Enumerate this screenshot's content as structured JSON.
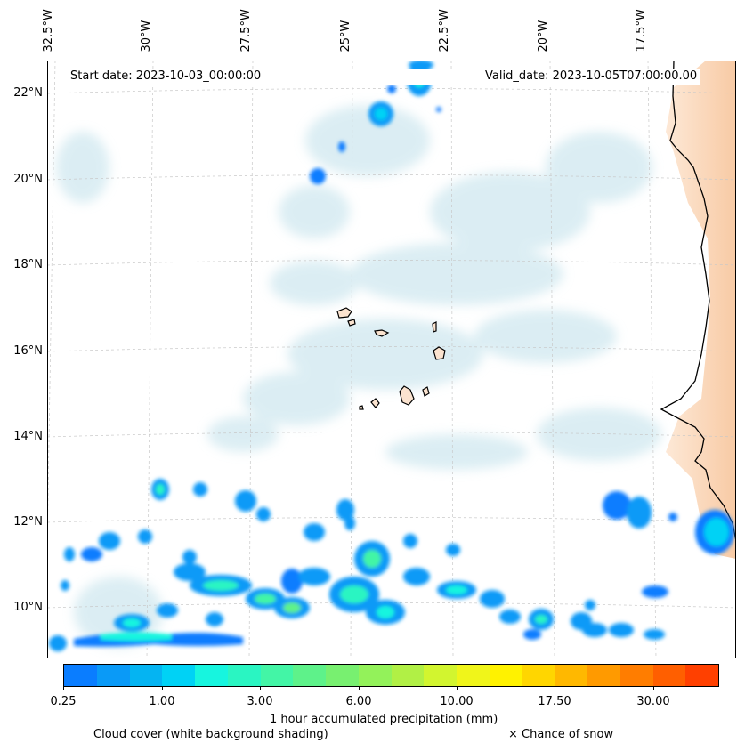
{
  "map": {
    "start_date": "Start date: 2023-10-03_00:00:00",
    "valid_date": "Valid_date: 2023-10-05T07:00:00.00",
    "lon_labels": [
      "32.5°W",
      "30°W",
      "27.5°W",
      "25°W",
      "22.5°W",
      "20°W",
      "17.5°W"
    ],
    "lat_labels": [
      "22°N",
      "20°N",
      "18°N",
      "16°N",
      "14°N",
      "12°N",
      "10°N"
    ]
  },
  "colorbar": {
    "colors": [
      "#0a7dff",
      "#0a9af7",
      "#05b4f2",
      "#00d2f5",
      "#17f5df",
      "#2af5c2",
      "#43f5a6",
      "#5ef28a",
      "#78f070",
      "#93f25a",
      "#b1f045",
      "#d2f52f",
      "#f0f51a",
      "#fff200",
      "#ffd600",
      "#ffb800",
      "#ff9a00",
      "#ff7d00",
      "#ff5f00",
      "#ff4000"
    ],
    "tick_labels": [
      "0.25",
      "1.00",
      "3.00",
      "6.00",
      "10.00",
      "17.50",
      "30.00"
    ],
    "label": "1 hour accumulated precipitation (mm)"
  },
  "footer": {
    "cloud_note": "Cloud cover (white background shading)",
    "snow_note": "× Chance of snow"
  }
}
